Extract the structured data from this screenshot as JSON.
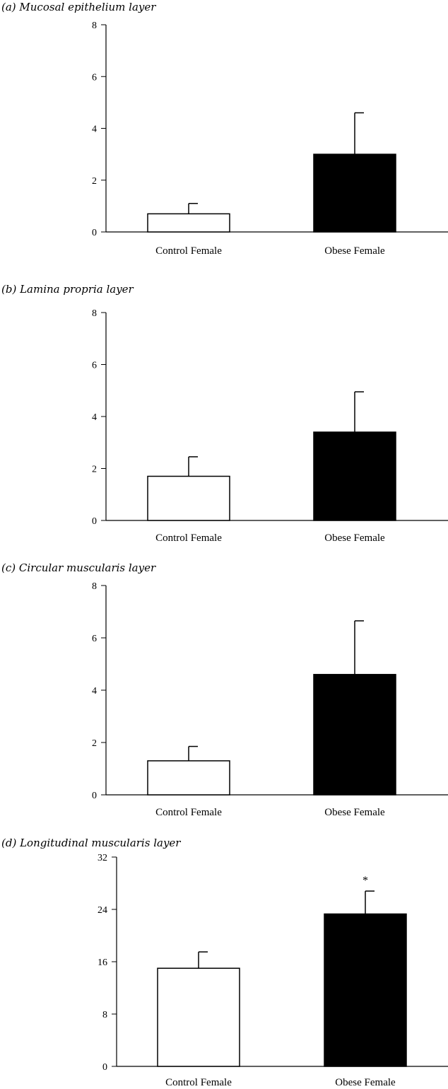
{
  "chart_data": [
    {
      "type": "bar",
      "title": "(a) Mucosal epithelium layer",
      "categories": [
        "Control Female",
        "Obese Female"
      ],
      "values": [
        0.7,
        3.0
      ],
      "errors": [
        0.4,
        1.6
      ],
      "ylim": [
        0,
        8
      ],
      "yticks": [
        "0",
        "2",
        "4",
        "6",
        "8"
      ],
      "colors": [
        "#ffffff",
        "#000000"
      ],
      "annotations": [
        "",
        ""
      ]
    },
    {
      "type": "bar",
      "title": "(b) Lamina propria layer",
      "categories": [
        "Control Female",
        "Obese Female"
      ],
      "values": [
        1.7,
        3.4
      ],
      "errors": [
        0.75,
        1.55
      ],
      "ylim": [
        0,
        8
      ],
      "yticks": [
        "0",
        "2",
        "4",
        "6",
        "8"
      ],
      "colors": [
        "#ffffff",
        "#000000"
      ],
      "annotations": [
        "",
        ""
      ]
    },
    {
      "type": "bar",
      "title": "(c) Circular muscularis layer",
      "categories": [
        "Control Female",
        "Obese Female"
      ],
      "values": [
        1.3,
        4.6
      ],
      "errors": [
        0.55,
        2.05
      ],
      "ylim": [
        0,
        8
      ],
      "yticks": [
        "0",
        "2",
        "4",
        "6",
        "8"
      ],
      "colors": [
        "#ffffff",
        "#000000"
      ],
      "annotations": [
        "",
        ""
      ]
    },
    {
      "type": "bar",
      "title": "(d) Longitudinal muscularis layer",
      "categories": [
        "Control Female",
        "Obese Female"
      ],
      "values": [
        15,
        23.3
      ],
      "errors": [
        2.5,
        3.5
      ],
      "ylim": [
        0,
        32
      ],
      "yticks": [
        "0",
        "8",
        "16",
        "24",
        "32"
      ],
      "colors": [
        "#ffffff",
        "#000000"
      ],
      "annotations": [
        "",
        "*"
      ]
    }
  ]
}
